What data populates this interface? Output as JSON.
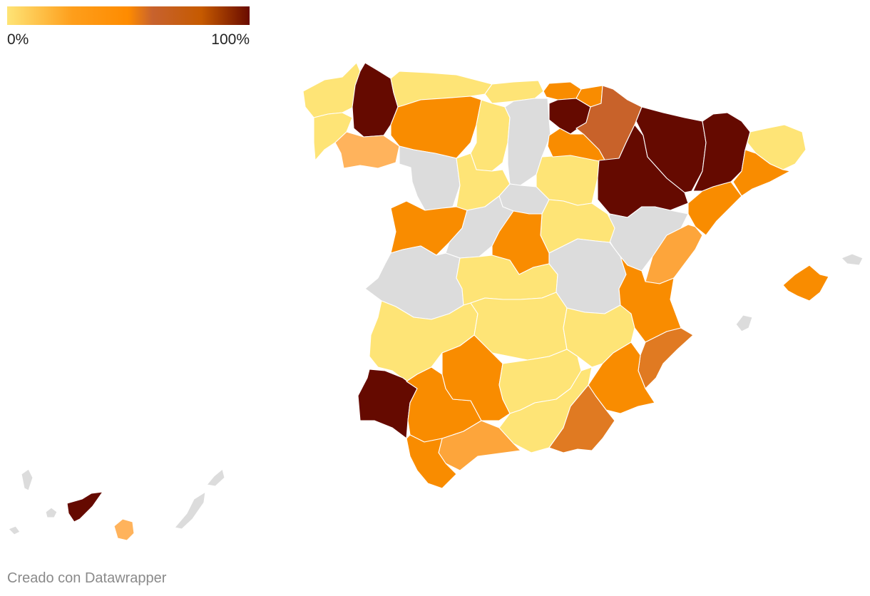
{
  "legend": {
    "min_label": "0%",
    "max_label": "100%",
    "gradient": [
      "#fee476",
      "#fe9e1b",
      "#fe8b00",
      "#c7622e",
      "#c65a00",
      "#690b00"
    ]
  },
  "credit": "Creado con Datawrapper",
  "colors": {
    "no_data": "#dcdcdc",
    "low": "#fee476",
    "light_orange": "#ffb35c",
    "mid_orange": "#fda53b",
    "orange": "#f98c00",
    "dark_orange": "#e07a22",
    "brown": "#c8622a",
    "maroon": "#650a00"
  }
}
